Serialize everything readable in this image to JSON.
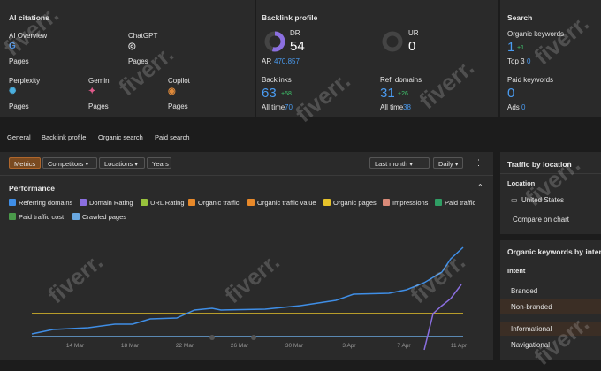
{
  "ai_citations": {
    "title": "AI citations",
    "items": [
      {
        "name": "AI Overview",
        "sub": "Pages"
      },
      {
        "name": "ChatGPT",
        "sub": "Pages"
      },
      {
        "name": "Perplexity",
        "sub": "Pages"
      },
      {
        "name": "Gemini",
        "sub": "Pages"
      },
      {
        "name": "Copilot",
        "sub": "Pages"
      }
    ]
  },
  "backlink_profile": {
    "title": "Backlink profile",
    "dr": {
      "label": "DR",
      "value": 54,
      "sub_label": "AR",
      "sub_value": "470,857"
    },
    "ur": {
      "label": "UR",
      "value": 0
    },
    "backlinks": {
      "label": "Backlinks",
      "value": 63,
      "delta": "+58",
      "foot_label": "All time",
      "foot_value": 70
    },
    "ref_domains": {
      "label": "Ref. domains",
      "value": 31,
      "delta": "+26",
      "foot_label": "All time",
      "foot_value": 38
    }
  },
  "search": {
    "title": "Search",
    "organic": {
      "label": "Organic keywords",
      "value": 1,
      "delta": "+1",
      "foot_label": "Top 3",
      "foot_value": 0
    },
    "paid": {
      "label": "Paid keywords",
      "value": 0,
      "foot_label": "Ads",
      "foot_value": 0
    }
  },
  "tabs": [
    "General",
    "Backlink profile",
    "Organic search",
    "Paid search"
  ],
  "toolbar": {
    "buttons": [
      "Metrics",
      "Competitors",
      "Locations",
      "Years"
    ],
    "period": "Last month",
    "interval": "Daily"
  },
  "performance": {
    "title": "Performance",
    "metrics": [
      {
        "name": "Referring domains",
        "checked": true,
        "color": "#3f8ee6"
      },
      {
        "name": "Domain Rating",
        "checked": true,
        "color": "#8b6fe0"
      },
      {
        "name": "URL Rating",
        "checked": true,
        "color": "#98c23c"
      },
      {
        "name": "Organic traffic",
        "checked": true,
        "color": "#e8892a"
      },
      {
        "name": "Organic traffic value",
        "checked": true,
        "color": "#e8892a"
      },
      {
        "name": "Organic pages",
        "checked": true,
        "color": "#e6c22a"
      },
      {
        "name": "Impressions",
        "checked": true,
        "color": "#d98a78"
      },
      {
        "name": "Paid traffic",
        "checked": true,
        "color": "#2f9e64"
      },
      {
        "name": "Paid traffic cost",
        "checked": true,
        "color": "#4a9a4a"
      },
      {
        "name": "Crawled pages",
        "checked": true,
        "color": "#6aa8e0"
      }
    ],
    "x_labels": [
      "14 Mar",
      "18 Mar",
      "22 Mar",
      "26 Mar",
      "30 Mar",
      "3 Apr",
      "7 Apr",
      "11 Apr"
    ]
  },
  "traffic_location": {
    "title": "Traffic by location",
    "column": "Location",
    "row": "United States",
    "button": "Compare on chart"
  },
  "intent": {
    "title": "Organic keywords by intent",
    "column": "Intent",
    "rows": [
      "Branded",
      "Non-branded",
      "Informational",
      "Navigational"
    ]
  },
  "watermark": "fiverr."
}
